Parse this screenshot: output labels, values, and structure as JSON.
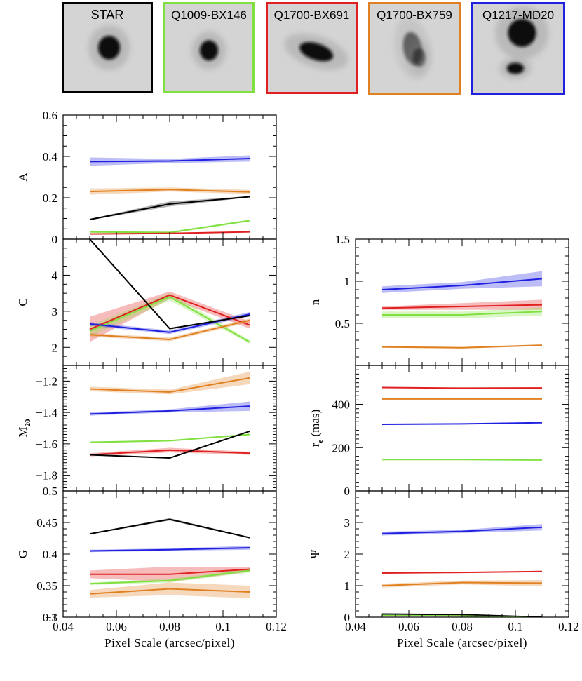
{
  "thumbnails": [
    {
      "label": "STAR",
      "color": "#000000"
    },
    {
      "label": "Q1009-BX146",
      "color": "#80e040"
    },
    {
      "label": "Q1700-BX691",
      "color": "#e02020"
    },
    {
      "label": "Q1700-BX759",
      "color": "#e08020"
    },
    {
      "label": "Q1217-MD20",
      "color": "#2020e0"
    }
  ],
  "series_colors": {
    "STAR": "#000000",
    "Q1009-BX146": "#80e040",
    "Q1700-BX691": "#e02020",
    "Q1700-BX759": "#e08020",
    "Q1217-MD20": "#2020e0"
  },
  "chart_data": [
    {
      "type": "line",
      "ylabel": "A",
      "xlabel": "",
      "xlim": [
        0.04,
        0.12
      ],
      "ylim": [
        0,
        0.6
      ],
      "yticks": [
        "0",
        "0.2",
        "0.4",
        "0.6"
      ],
      "xticks": [],
      "x": [
        0.05,
        0.08,
        0.11
      ],
      "series": [
        {
          "name": "Q1217-MD20",
          "values": [
            0.375,
            0.378,
            0.39
          ],
          "band": [
            0.02,
            0.01,
            0.015
          ]
        },
        {
          "name": "Q1700-BX759",
          "values": [
            0.23,
            0.24,
            0.228
          ],
          "band": [
            0.015,
            0.01,
            0.01
          ]
        },
        {
          "name": "STAR",
          "values": [
            0.095,
            0.17,
            0.205
          ],
          "band": [
            0.003,
            0.012,
            0.003
          ]
        },
        {
          "name": "Q1009-BX146",
          "values": [
            0.035,
            0.032,
            0.09
          ],
          "band": [
            0.005,
            0.005,
            0.005
          ]
        },
        {
          "name": "Q1700-BX691",
          "values": [
            0.025,
            0.028,
            0.035
          ],
          "band": [
            0.003,
            0.003,
            0.003
          ]
        }
      ]
    },
    {
      "type": "line",
      "ylabel": "C",
      "xlabel": "",
      "xlim": [
        0.04,
        0.12
      ],
      "ylim": [
        1.5,
        5
      ],
      "yticks": [
        "2",
        "3",
        "4"
      ],
      "xticks": [],
      "x": [
        0.05,
        0.08,
        0.11
      ],
      "series": [
        {
          "name": "Q1700-BX691",
          "values": [
            2.5,
            3.45,
            2.62
          ],
          "band": [
            0.35,
            0.1,
            0.1
          ]
        },
        {
          "name": "Q1009-BX146",
          "values": [
            2.45,
            3.4,
            2.15
          ],
          "band": [
            0.15,
            0.1,
            0.05
          ]
        },
        {
          "name": "Q1217-MD20",
          "values": [
            2.65,
            2.42,
            2.92
          ],
          "band": [
            0.05,
            0.05,
            0.06
          ]
        },
        {
          "name": "Q1700-BX759",
          "values": [
            2.35,
            2.22,
            2.75
          ],
          "band": [
            0.05,
            0.05,
            0.05
          ]
        },
        {
          "name": "STAR",
          "values": [
            5.0,
            2.52,
            2.88
          ],
          "band": [
            0.02,
            0.02,
            0.02
          ]
        }
      ]
    },
    {
      "type": "line",
      "ylabel": "M",
      "ylabel_sub": "20",
      "xlabel": "",
      "xlim": [
        0.04,
        0.12
      ],
      "ylim": [
        -1.9,
        -1.1
      ],
      "yticks": [
        "−1.8",
        "−1.6",
        "−1.4",
        "−1.2"
      ],
      "xticks": [],
      "x": [
        0.05,
        0.08,
        0.11
      ],
      "series": [
        {
          "name": "Q1700-BX759",
          "values": [
            -1.25,
            -1.27,
            -1.18
          ],
          "band": [
            0.015,
            0.015,
            0.04
          ]
        },
        {
          "name": "Q1217-MD20",
          "values": [
            -1.41,
            -1.39,
            -1.36
          ],
          "band": [
            0.01,
            0.01,
            0.03
          ]
        },
        {
          "name": "Q1009-BX146",
          "values": [
            -1.59,
            -1.58,
            -1.54
          ],
          "band": [
            0.005,
            0.005,
            0.005
          ]
        },
        {
          "name": "Q1700-BX691",
          "values": [
            -1.67,
            -1.64,
            -1.66
          ],
          "band": [
            0.01,
            0.015,
            0.01
          ]
        },
        {
          "name": "STAR",
          "values": [
            -1.67,
            -1.69,
            -1.52
          ],
          "band": [
            0.003,
            0.003,
            0.003
          ]
        }
      ]
    },
    {
      "type": "line",
      "ylabel": "G",
      "xlabel": "Pixel Scale (arcsec/pixel)",
      "xlim": [
        0.04,
        0.12
      ],
      "ylim": [
        0.3,
        0.5
      ],
      "yticks": [
        "0.3",
        "0.35",
        "0.4",
        "0.45",
        "−1"
      ],
      "xticks": [
        "0.04",
        "0.06",
        "0.08",
        "0.1",
        "0.12"
      ],
      "x": [
        0.05,
        0.08,
        0.11
      ],
      "series": [
        {
          "name": "STAR",
          "values": [
            0.432,
            0.455,
            0.426
          ],
          "band": [
            0.001,
            0.002,
            0.001
          ]
        },
        {
          "name": "Q1217-MD20",
          "values": [
            0.405,
            0.407,
            0.41
          ],
          "band": [
            0.002,
            0.002,
            0.003
          ]
        },
        {
          "name": "Q1700-BX691",
          "values": [
            0.368,
            0.368,
            0.376
          ],
          "band": [
            0.006,
            0.012,
            0.004
          ]
        },
        {
          "name": "Q1009-BX146",
          "values": [
            0.353,
            0.358,
            0.374
          ],
          "band": [
            0.002,
            0.003,
            0.003
          ]
        },
        {
          "name": "Q1700-BX759",
          "values": [
            0.337,
            0.345,
            0.34
          ],
          "band": [
            0.006,
            0.01,
            0.01
          ]
        }
      ]
    },
    {
      "type": "line",
      "ylabel": "n",
      "xlabel": "",
      "xlim": [
        0.04,
        0.12
      ],
      "ylim": [
        0,
        1.5
      ],
      "yticks": [
        "0.5",
        "1",
        "1.5"
      ],
      "xticks": [],
      "x": [
        0.05,
        0.08,
        0.11
      ],
      "series": [
        {
          "name": "Q1217-MD20",
          "values": [
            0.9,
            0.95,
            1.03
          ],
          "band": [
            0.04,
            0.04,
            0.09
          ]
        },
        {
          "name": "Q1700-BX691",
          "values": [
            0.68,
            0.7,
            0.72
          ],
          "band": [
            0.02,
            0.04,
            0.06
          ]
        },
        {
          "name": "Q1009-BX146",
          "values": [
            0.6,
            0.6,
            0.64
          ],
          "band": [
            0.04,
            0.04,
            0.05
          ]
        },
        {
          "name": "Q1700-BX759",
          "values": [
            0.22,
            0.21,
            0.24
          ],
          "band": [
            0.01,
            0.01,
            0.01
          ]
        }
      ]
    },
    {
      "type": "line",
      "ylabel": "r",
      "ylabel_sub": "e",
      "ylabel_suffix": " (mas)",
      "xlabel": "",
      "xlim": [
        0.04,
        0.12
      ],
      "ylim": [
        0,
        580
      ],
      "yticks": [
        "200",
        "400"
      ],
      "xticks": [],
      "x": [
        0.05,
        0.08,
        0.11
      ],
      "series": [
        {
          "name": "Q1700-BX691",
          "values": [
            478,
            475,
            476
          ],
          "band": [
            2,
            2,
            2
          ]
        },
        {
          "name": "Q1700-BX759",
          "values": [
            425,
            425,
            425
          ],
          "band": [
            1,
            1,
            1
          ]
        },
        {
          "name": "Q1217-MD20",
          "values": [
            308,
            310,
            315
          ],
          "band": [
            2,
            2,
            2
          ]
        },
        {
          "name": "Q1009-BX146",
          "values": [
            145,
            145,
            143
          ],
          "band": [
            1,
            1,
            1
          ]
        }
      ]
    },
    {
      "type": "line",
      "ylabel": "Ψ",
      "xlabel": "Pixel Scale (arcsec/pixel)",
      "xlim": [
        0.04,
        0.12
      ],
      "ylim": [
        0,
        4
      ],
      "yticks": [
        "0",
        "1",
        "2",
        "3"
      ],
      "xticks": [
        "0.04",
        "0.06",
        "0.08",
        "0.1",
        "0.12"
      ],
      "x": [
        0.05,
        0.08,
        0.11
      ],
      "series": [
        {
          "name": "Q1217-MD20",
          "values": [
            2.65,
            2.72,
            2.85
          ],
          "band": [
            0.06,
            0.05,
            0.1
          ]
        },
        {
          "name": "Q1700-BX691",
          "values": [
            1.4,
            1.42,
            1.45
          ],
          "band": [
            0.02,
            0.02,
            0.02
          ]
        },
        {
          "name": "Q1700-BX759",
          "values": [
            1.0,
            1.1,
            1.08
          ],
          "band": [
            0.06,
            0.06,
            0.1
          ]
        },
        {
          "name": "STAR",
          "values": [
            0.1,
            0.08,
            0.0
          ],
          "band": [
            0.005,
            0.005,
            0.005
          ]
        },
        {
          "name": "Q1009-BX146",
          "values": [
            0.05,
            0.04,
            -0.02
          ],
          "band": [
            0.005,
            0.005,
            0.005
          ]
        }
      ]
    }
  ],
  "extra_labels": {
    "c_panel_top": "0",
    "m20_panel_bottom": "0.5",
    "n_panel_bottom": "0"
  }
}
